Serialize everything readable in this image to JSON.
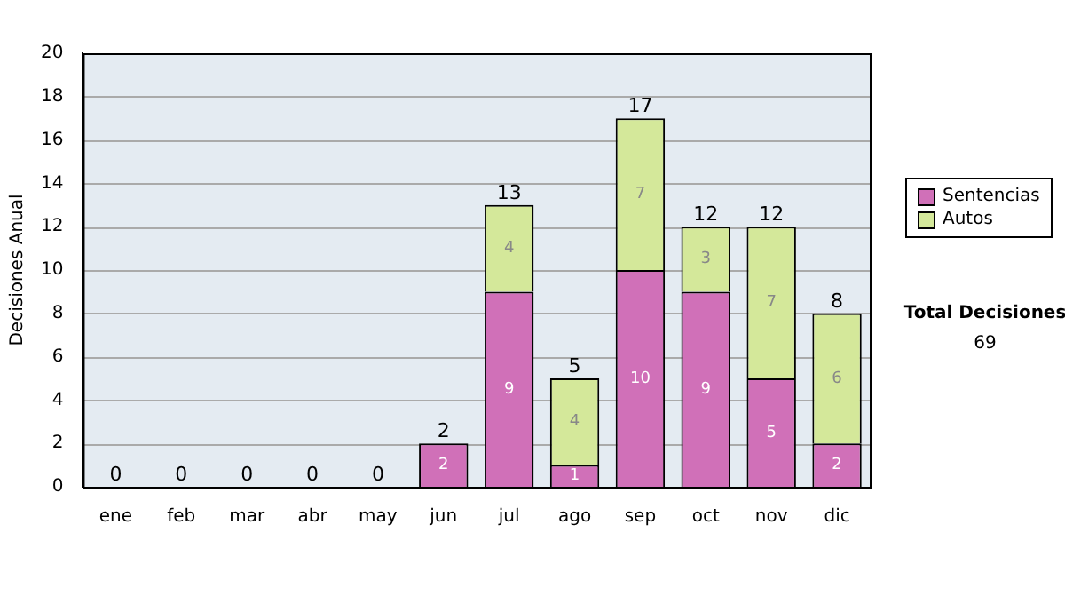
{
  "chart_data": {
    "type": "bar",
    "stacked": true,
    "ylabel": "Decisiones Anual",
    "categories": [
      "ene",
      "feb",
      "mar",
      "abr",
      "may",
      "jun",
      "jul",
      "ago",
      "sep",
      "oct",
      "nov",
      "dic"
    ],
    "series": [
      {
        "name": "Sentencias",
        "color": "#d070b8",
        "values": [
          0,
          0,
          0,
          0,
          0,
          2,
          9,
          1,
          10,
          9,
          5,
          2
        ],
        "value_labels": [
          null,
          null,
          null,
          null,
          null,
          "2",
          "9",
          "1",
          "10",
          "9",
          "5",
          "2"
        ]
      },
      {
        "name": "Autos",
        "color": "#d4e89a",
        "values": [
          0,
          0,
          0,
          0,
          0,
          0,
          4,
          4,
          7,
          3,
          7,
          6
        ],
        "value_labels": [
          null,
          null,
          null,
          null,
          null,
          null,
          "4",
          "4",
          "7",
          "3",
          "7",
          "6"
        ]
      }
    ],
    "totals": [
      "0",
      "0",
      "0",
      "0",
      "0",
      "2",
      "13",
      "5",
      "17",
      "12",
      "12",
      "8"
    ],
    "ylim": [
      0,
      20
    ],
    "yticks": [
      0,
      2,
      4,
      6,
      8,
      10,
      12,
      14,
      16,
      18,
      20
    ],
    "grid": "y",
    "legend": "right",
    "annotations": [
      "Total Decisiones",
      "69"
    ]
  }
}
